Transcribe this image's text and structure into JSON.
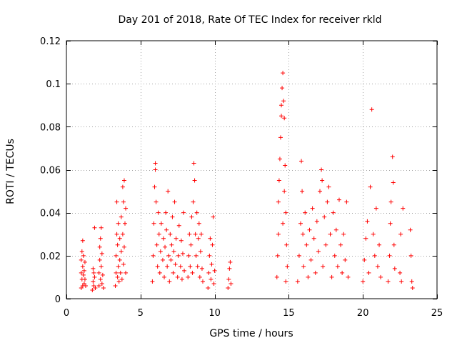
{
  "chart_data": {
    "type": "scatter",
    "title": "Day 201 of 2018, Rate Of TEC Index for receiver rkld",
    "xlabel": "GPS time / hours",
    "ylabel": "ROTI / TECUs",
    "xlim": [
      0,
      25
    ],
    "ylim": [
      0,
      0.12
    ],
    "xticks": [
      0,
      5,
      10,
      15,
      20,
      25
    ],
    "yticks": [
      0,
      0.02,
      0.04,
      0.06,
      0.08,
      0.1,
      0.12
    ],
    "xtick_labels": [
      "0",
      "5",
      "10",
      "15",
      "20",
      "25"
    ],
    "ytick_labels": [
      "0",
      "0.02",
      "0.04",
      "0.06",
      "0.08",
      "0.1",
      "0.12"
    ],
    "grid": true,
    "marker": "+",
    "color": "#ff0000",
    "series": [
      {
        "points": [
          [
            1.0,
            0.005
          ],
          [
            1.0,
            0.012
          ],
          [
            1.0,
            0.018
          ],
          [
            1.05,
            0.009
          ],
          [
            1.05,
            0.022
          ],
          [
            1.1,
            0.006
          ],
          [
            1.1,
            0.015
          ],
          [
            1.1,
            0.027
          ],
          [
            1.15,
            0.011
          ],
          [
            1.15,
            0.02
          ],
          [
            1.2,
            0.007
          ],
          [
            1.2,
            0.013
          ],
          [
            1.25,
            0.009
          ],
          [
            1.25,
            0.017
          ],
          [
            1.3,
            0.006
          ],
          [
            1.75,
            0.004
          ],
          [
            1.8,
            0.008
          ],
          [
            1.8,
            0.014
          ],
          [
            1.85,
            0.006
          ],
          [
            1.85,
            0.012
          ],
          [
            1.9,
            0.033
          ],
          [
            1.9,
            0.01
          ],
          [
            1.95,
            0.005
          ],
          [
            2.2,
            0.006
          ],
          [
            2.2,
            0.012
          ],
          [
            2.25,
            0.018
          ],
          [
            2.25,
            0.024
          ],
          [
            2.3,
            0.009
          ],
          [
            2.3,
            0.028
          ],
          [
            2.35,
            0.015
          ],
          [
            2.35,
            0.033
          ],
          [
            2.4,
            0.007
          ],
          [
            2.4,
            0.021
          ],
          [
            2.45,
            0.011
          ],
          [
            2.5,
            0.005
          ],
          [
            3.3,
            0.006
          ],
          [
            3.35,
            0.012
          ],
          [
            3.35,
            0.02
          ],
          [
            3.4,
            0.03
          ],
          [
            3.4,
            0.045
          ],
          [
            3.45,
            0.01
          ],
          [
            3.45,
            0.025
          ],
          [
            3.5,
            0.015
          ],
          [
            3.5,
            0.035
          ],
          [
            3.55,
            0.008
          ],
          [
            3.6,
            0.018
          ],
          [
            3.6,
            0.028
          ],
          [
            3.65,
            0.012
          ],
          [
            3.7,
            0.022
          ],
          [
            3.7,
            0.038
          ],
          [
            3.75,
            0.009
          ],
          [
            3.8,
            0.03
          ],
          [
            3.8,
            0.052
          ],
          [
            3.85,
            0.016
          ],
          [
            3.85,
            0.045
          ],
          [
            3.9,
            0.055
          ],
          [
            3.9,
            0.024
          ],
          [
            3.95,
            0.035
          ],
          [
            4.0,
            0.012
          ],
          [
            4.0,
            0.042
          ],
          [
            5.8,
            0.008
          ],
          [
            5.85,
            0.02
          ],
          [
            5.9,
            0.035
          ],
          [
            5.95,
            0.052
          ],
          [
            6.0,
            0.06
          ],
          [
            6.0,
            0.063
          ],
          [
            6.05,
            0.045
          ],
          [
            6.1,
            0.025
          ],
          [
            6.15,
            0.015
          ],
          [
            6.2,
            0.04
          ],
          [
            6.25,
            0.03
          ],
          [
            6.3,
            0.012
          ],
          [
            6.35,
            0.022
          ],
          [
            6.4,
            0.035
          ],
          [
            6.5,
            0.018
          ],
          [
            6.55,
            0.028
          ],
          [
            6.6,
            0.01
          ],
          [
            6.65,
            0.024
          ],
          [
            6.7,
            0.04
          ],
          [
            6.75,
            0.032
          ],
          [
            6.8,
            0.015
          ],
          [
            6.85,
            0.05
          ],
          [
            6.9,
            0.02
          ],
          [
            6.95,
            0.008
          ],
          [
            7.0,
            0.03
          ],
          [
            7.05,
            0.018
          ],
          [
            7.1,
            0.025
          ],
          [
            7.15,
            0.038
          ],
          [
            7.2,
            0.012
          ],
          [
            7.25,
            0.022
          ],
          [
            7.3,
            0.045
          ],
          [
            7.35,
            0.016
          ],
          [
            7.4,
            0.028
          ],
          [
            7.5,
            0.01
          ],
          [
            7.55,
            0.02
          ],
          [
            7.6,
            0.034
          ],
          [
            7.7,
            0.015
          ],
          [
            7.75,
            0.027
          ],
          [
            7.8,
            0.009
          ],
          [
            7.85,
            0.021
          ],
          [
            7.9,
            0.04
          ],
          [
            7.95,
            0.013
          ],
          [
            8.2,
            0.01
          ],
          [
            8.25,
            0.02
          ],
          [
            8.3,
            0.03
          ],
          [
            8.35,
            0.015
          ],
          [
            8.4,
            0.025
          ],
          [
            8.45,
            0.038
          ],
          [
            8.5,
            0.012
          ],
          [
            8.55,
            0.045
          ],
          [
            8.6,
            0.063
          ],
          [
            8.65,
            0.055
          ],
          [
            8.7,
            0.03
          ],
          [
            8.75,
            0.02
          ],
          [
            8.8,
            0.04
          ],
          [
            8.85,
            0.015
          ],
          [
            8.9,
            0.028
          ],
          [
            8.95,
            0.035
          ],
          [
            9.0,
            0.01
          ],
          [
            9.05,
            0.022
          ],
          [
            9.1,
            0.03
          ],
          [
            9.15,
            0.014
          ],
          [
            9.2,
            0.008
          ],
          [
            9.55,
            0.005
          ],
          [
            9.6,
            0.012
          ],
          [
            9.65,
            0.02
          ],
          [
            9.7,
            0.028
          ],
          [
            9.75,
            0.009
          ],
          [
            9.8,
            0.016
          ],
          [
            9.85,
            0.025
          ],
          [
            9.9,
            0.038
          ],
          [
            9.95,
            0.007
          ],
          [
            10.0,
            0.013
          ],
          [
            10.9,
            0.005
          ],
          [
            10.95,
            0.009
          ],
          [
            11.0,
            0.014
          ],
          [
            11.05,
            0.017
          ],
          [
            11.1,
            0.007
          ],
          [
            14.2,
            0.01
          ],
          [
            14.25,
            0.02
          ],
          [
            14.3,
            0.03
          ],
          [
            14.3,
            0.045
          ],
          [
            14.35,
            0.055
          ],
          [
            14.4,
            0.065
          ],
          [
            14.45,
            0.075
          ],
          [
            14.5,
            0.085
          ],
          [
            14.5,
            0.09
          ],
          [
            14.55,
            0.098
          ],
          [
            14.6,
            0.105
          ],
          [
            14.65,
            0.092
          ],
          [
            14.7,
            0.084
          ],
          [
            14.75,
            0.062
          ],
          [
            14.8,
            0.04
          ],
          [
            14.85,
            0.025
          ],
          [
            14.9,
            0.015
          ],
          [
            14.6,
            0.035
          ],
          [
            14.7,
            0.05
          ],
          [
            14.8,
            0.008
          ],
          [
            15.6,
            0.008
          ],
          [
            15.7,
            0.02
          ],
          [
            15.8,
            0.035
          ],
          [
            15.85,
            0.064
          ],
          [
            15.9,
            0.05
          ],
          [
            15.95,
            0.03
          ],
          [
            16.0,
            0.015
          ],
          [
            16.1,
            0.04
          ],
          [
            16.2,
            0.025
          ],
          [
            16.3,
            0.01
          ],
          [
            16.4,
            0.032
          ],
          [
            16.5,
            0.018
          ],
          [
            16.6,
            0.042
          ],
          [
            16.7,
            0.028
          ],
          [
            16.8,
            0.012
          ],
          [
            16.9,
            0.036
          ],
          [
            17.0,
            0.022
          ],
          [
            17.1,
            0.05
          ],
          [
            17.2,
            0.06
          ],
          [
            17.25,
            0.055
          ],
          [
            17.3,
            0.015
          ],
          [
            17.4,
            0.038
          ],
          [
            17.5,
            0.025
          ],
          [
            17.6,
            0.045
          ],
          [
            17.7,
            0.052
          ],
          [
            17.8,
            0.03
          ],
          [
            17.9,
            0.01
          ],
          [
            18.0,
            0.04
          ],
          [
            18.1,
            0.02
          ],
          [
            18.2,
            0.032
          ],
          [
            18.3,
            0.015
          ],
          [
            18.4,
            0.046
          ],
          [
            18.5,
            0.025
          ],
          [
            18.6,
            0.012
          ],
          [
            18.7,
            0.03
          ],
          [
            18.8,
            0.018
          ],
          [
            18.9,
            0.045
          ],
          [
            19.0,
            0.01
          ],
          [
            20.0,
            0.008
          ],
          [
            20.1,
            0.018
          ],
          [
            20.2,
            0.028
          ],
          [
            20.3,
            0.036
          ],
          [
            20.4,
            0.012
          ],
          [
            20.5,
            0.052
          ],
          [
            20.6,
            0.088
          ],
          [
            20.7,
            0.03
          ],
          [
            20.8,
            0.02
          ],
          [
            20.9,
            0.042
          ],
          [
            21.0,
            0.015
          ],
          [
            21.1,
            0.025
          ],
          [
            21.2,
            0.01
          ],
          [
            21.7,
            0.008
          ],
          [
            21.8,
            0.02
          ],
          [
            21.85,
            0.035
          ],
          [
            21.9,
            0.045
          ],
          [
            22.0,
            0.066
          ],
          [
            22.05,
            0.054
          ],
          [
            22.1,
            0.025
          ],
          [
            22.15,
            0.014
          ],
          [
            22.5,
            0.012
          ],
          [
            22.55,
            0.03
          ],
          [
            22.6,
            0.008
          ],
          [
            22.7,
            0.042
          ],
          [
            23.2,
            0.032
          ],
          [
            23.25,
            0.02
          ],
          [
            23.3,
            0.008
          ],
          [
            23.35,
            0.005
          ]
        ]
      }
    ]
  }
}
